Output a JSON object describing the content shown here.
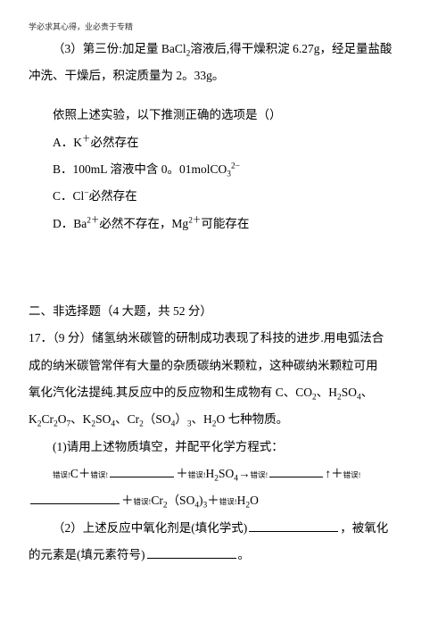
{
  "motto": "学必求其心得，业必贵于专精",
  "q3": {
    "line1_a": "（3）第三份:加足量 BaCl",
    "line1_b": "溶液后,得干燥积淀 6.27g，经足量盐酸",
    "line2": "冲洗、干燥后，积淀质量为 2。33g。",
    "stem": "依照上述实验，以下推测正确的选项是（）",
    "optA_a": "A．K",
    "optA_b": "必然存在",
    "optB_a": "B．100mL 溶液中含 0。01molCO",
    "optB_sup": "2−",
    "optB_sub": "3",
    "optC_a": "C．Cl",
    "optC_b": "必然存在",
    "optD_a": "D．Ba",
    "optD_mid": "必然不存在，Mg",
    "optD_end": "可能存在"
  },
  "sec2": {
    "heading": "二、非选择题（4 大题，共 52 分）",
    "q17_a": "17．（9 分）储氢纳米碳管的研制成功表现了科技的进步.用电弧法合",
    "q17_b": "成的纳米碳管常伴有大量的杂质碳纳米颗粒，这种碳纳米颗粒可用",
    "q17_c": "氧化汽化法提纯.其反应中的反应物和生成物有 C、CO",
    "q17_c_tail": "、H",
    "q17_c_tail2": "SO",
    "q17_d_a": "K",
    "q17_d_b": "Cr",
    "q17_d_c": "O",
    "q17_d_d": "、K",
    "q17_d_e": "SO",
    "q17_d_f": "、Cr",
    "q17_d_g": "（SO",
    "q17_d_h": "）",
    "q17_d_i": "、H",
    "q17_d_j": "O 七种物质。",
    "q17_1": "(1)请用上述物质填空，并配平化学方程式：",
    "err": "错误!",
    "q17_eq_c": "C＋",
    "q17_eq_plus": "＋",
    "q17_eq_h2so4": "H",
    "q17_eq_so4": "SO",
    "q17_eq_arrow": "→",
    "q17_eq_up": "↑＋",
    "q17_eq_cr2": "Cr",
    "q17_eq_so4b": "（SO",
    "q17_eq_3": ")",
    "q17_eq_h2o": "H",
    "q17_eq_oend": "O",
    "q17_2_a": "（2）上述反应中氧化剂是(填化学式)",
    "q17_2_b": "，被氧化",
    "q17_2_c": "的元素是(填元素符号)",
    "q17_2_d": "。"
  },
  "colors": {
    "text": "#000000",
    "bg": "#ffffff"
  }
}
